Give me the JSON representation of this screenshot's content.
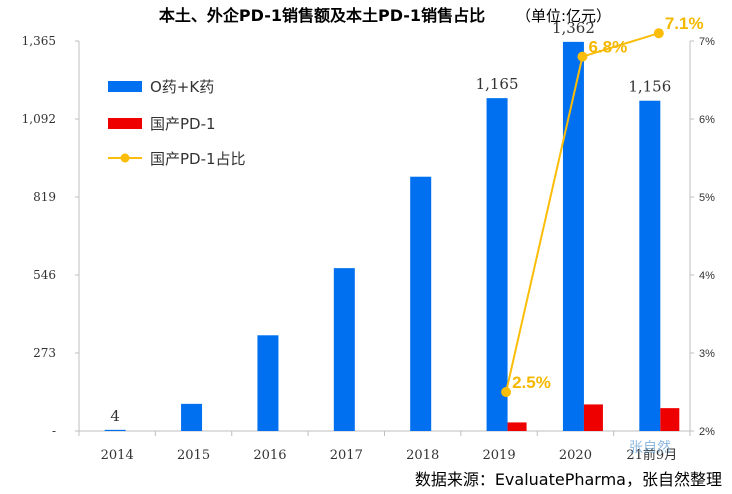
{
  "title": "本土、外企PD-1销售额及本土PD-1销售占比",
  "subtitle": "（单位:亿元）",
  "source": "数据来源：EvaluatePharma，张自然整理",
  "watermark": "张自然",
  "colors": {
    "blue": "#0070f0",
    "red": "#ee0000",
    "gold": "#fbbd08",
    "gold_text": "#f5b800",
    "grid_axis": "#bfbfbf"
  },
  "chart_data": {
    "type": "bar",
    "categories": [
      "2014",
      "2015",
      "2016",
      "2017",
      "2018",
      "2019",
      "2020",
      "21前9月"
    ],
    "series": [
      {
        "name": "O药+K药",
        "kind": "bar",
        "axis": "left",
        "values": [
          4,
          95,
          335,
          570,
          890,
          1165,
          1362,
          1156
        ]
      },
      {
        "name": "国产PD-1",
        "kind": "bar",
        "axis": "left",
        "values": [
          null,
          null,
          null,
          null,
          null,
          30,
          93,
          80
        ]
      },
      {
        "name": "国产PD-1占比",
        "kind": "line",
        "axis": "right",
        "values": [
          null,
          null,
          null,
          null,
          null,
          0.025,
          0.068,
          0.071
        ]
      }
    ],
    "left_axis": {
      "min": 0,
      "max": 1365,
      "ticks": [
        0,
        273,
        546,
        819,
        1092,
        1365
      ],
      "tick_labels": [
        "-",
        "273",
        "546",
        "819",
        "1,092",
        "1,365"
      ]
    },
    "right_axis": {
      "min": 0.02,
      "max": 0.07,
      "ticks": [
        0.02,
        0.03,
        0.04,
        0.05,
        0.06,
        0.07
      ],
      "tick_labels": [
        "2%",
        "3%",
        "4%",
        "5%",
        "6%",
        "7%"
      ]
    },
    "bar_labels": [
      {
        "index": 0,
        "text": "4"
      },
      {
        "index": 5,
        "text": "1,165"
      },
      {
        "index": 6,
        "text": "1,362"
      },
      {
        "index": 7,
        "text": "1,156"
      }
    ],
    "pct_labels": [
      "2.5%",
      "6.8%",
      "7.1%"
    ],
    "legend": {
      "position": "top-left",
      "entries": [
        "O药+K药",
        "国产PD-1",
        "国产PD-1占比"
      ]
    },
    "grid": false
  }
}
